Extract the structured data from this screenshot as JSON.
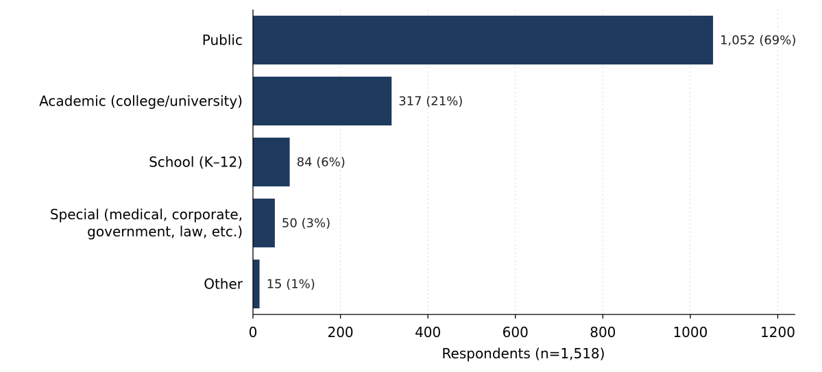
{
  "chart_data": {
    "type": "bar",
    "orientation": "horizontal",
    "categories": [
      [
        "Public"
      ],
      [
        "Academic (college/university)"
      ],
      [
        "School (K–12)"
      ],
      [
        "Special (medical, corporate,",
        "government, law, etc.)"
      ],
      [
        "Other"
      ]
    ],
    "values": [
      1052,
      317,
      84,
      50,
      15
    ],
    "data_labels": [
      "1,052  (69%)",
      "317  (21%)",
      "84  (6%)",
      "50  (3%)",
      "15  (1%)"
    ],
    "xlabel": "Respondents (n=1,518)",
    "ylabel": "",
    "xlim": [
      0,
      1240
    ],
    "xticks": [
      0,
      200,
      400,
      600,
      800,
      1000,
      1200
    ],
    "xtick_labels": [
      "0",
      "200",
      "400",
      "600",
      "800",
      "1000",
      "1200"
    ],
    "grid": "x-dotted",
    "bar_color": "#1f3a5f"
  }
}
